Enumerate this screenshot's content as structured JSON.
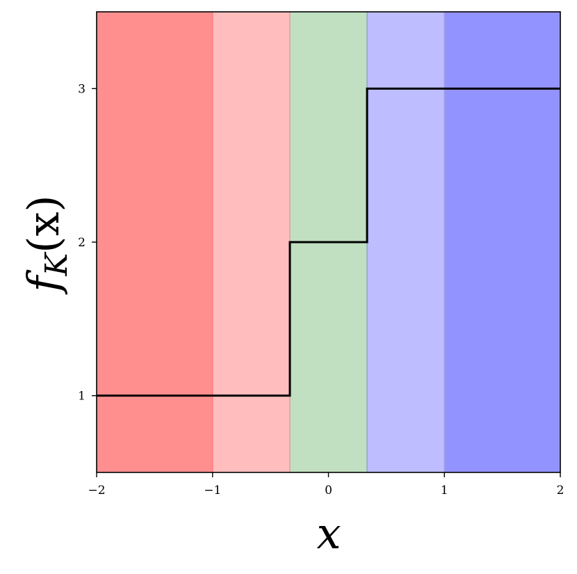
{
  "chart_data": {
    "type": "line",
    "step": "post",
    "xlabel": "x",
    "ylabel": "f_K(x)",
    "ylabel_parts": {
      "base": "f",
      "sub": "K",
      "arg": "(x)"
    },
    "xlim": [
      -2,
      2
    ],
    "ylim": [
      0.5,
      3.5
    ],
    "xticks": [
      -2,
      -1,
      0,
      1,
      2
    ],
    "xtick_labels": [
      "−2",
      "−1",
      "0",
      "1",
      "2"
    ],
    "yticks": [
      1,
      2,
      3
    ],
    "ytick_labels": [
      "1",
      "2",
      "3"
    ],
    "grid": false,
    "regions": [
      {
        "x0": -2,
        "x1": -1,
        "color": "#ff8f8f"
      },
      {
        "x0": -1,
        "x1": -0.333,
        "color": "#ffbdbd"
      },
      {
        "x0": -0.333,
        "x1": 0.333,
        "color": "#c1dfc1"
      },
      {
        "x0": 0.333,
        "x1": 1,
        "color": "#bdbdff"
      },
      {
        "x0": 1,
        "x1": 2,
        "color": "#9393ff"
      }
    ],
    "region_border_colors": [
      "#ff7a7a",
      "#d9a0a0",
      "#8aa9c6",
      "#9f9fe6"
    ],
    "series": [
      {
        "x": [
          -2,
          -0.333,
          -0.333,
          0.333,
          0.333,
          2
        ],
        "y": [
          1,
          1,
          2,
          2,
          3,
          3
        ],
        "color": "#000000"
      }
    ]
  }
}
